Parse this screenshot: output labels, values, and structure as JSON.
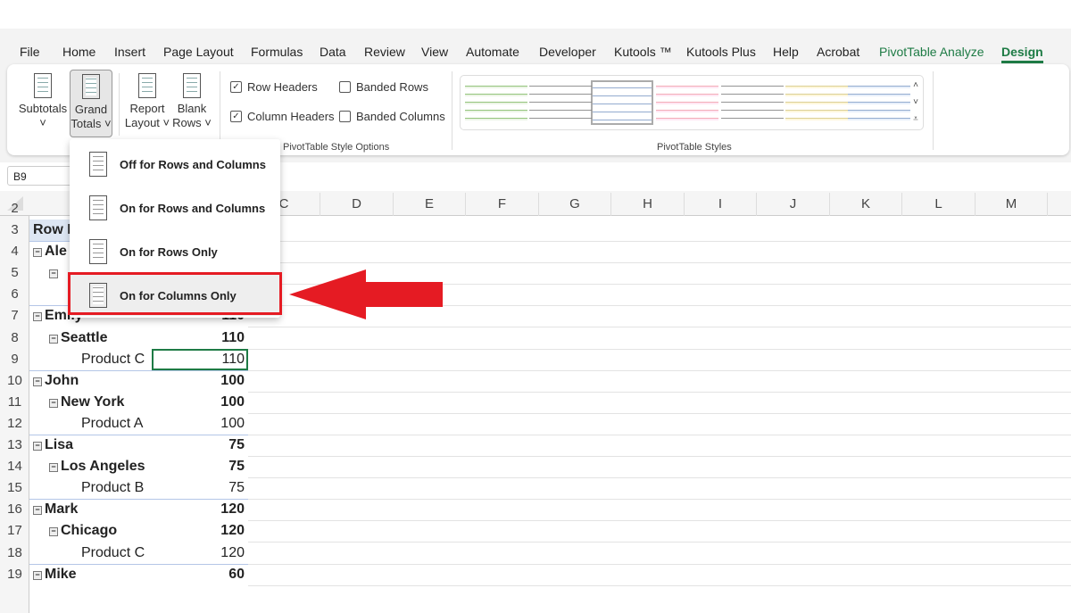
{
  "menu_tabs": [
    "File",
    "Home",
    "Insert",
    "Page Layout",
    "Formulas",
    "Data",
    "Review",
    "View",
    "Automate",
    "Developer",
    "Kutools ™",
    "Kutools Plus",
    "Help",
    "Acrobat",
    "PivotTable Analyze",
    "Design"
  ],
  "active_tab": "Design",
  "ribbon": {
    "buttons": [
      {
        "label1": "Subtotals",
        "label2": "˅"
      },
      {
        "label1": "Grand",
        "label2": "Totals ˅"
      },
      {
        "label1": "Report",
        "label2": "Layout ˅"
      },
      {
        "label1": "Blank",
        "label2": "Rows ˅"
      }
    ],
    "options": [
      {
        "label": "Row Headers",
        "checked": true
      },
      {
        "label": "Banded Rows",
        "checked": false
      },
      {
        "label": "Column Headers",
        "checked": true
      },
      {
        "label": "Banded Columns",
        "checked": false
      }
    ],
    "options_group": "PivotTable Style Options",
    "styles_group": "PivotTable Styles"
  },
  "name_box": "B9",
  "columns": [
    "C",
    "D",
    "E",
    "F",
    "G",
    "H",
    "I",
    "J",
    "K",
    "L",
    "M"
  ],
  "rows": [
    {
      "n": "3",
      "a": "Row L",
      "b": "",
      "lvl": 0,
      "bold": true
    },
    {
      "n": "4",
      "a": "Ale",
      "b": "",
      "lvl": 0,
      "bold": true,
      "tog": true
    },
    {
      "n": "5",
      "a": "",
      "b": "",
      "lvl": 1,
      "bold": true,
      "tog": true
    },
    {
      "n": "6",
      "a": "",
      "b": "",
      "lvl": 2
    },
    {
      "n": "7",
      "a": "Emily",
      "b": "110",
      "lvl": 0,
      "bold": true,
      "tog": true
    },
    {
      "n": "8",
      "a": "Seattle",
      "b": "110",
      "lvl": 1,
      "bold": true,
      "tog": true
    },
    {
      "n": "9",
      "a": "Product C",
      "b": "110",
      "lvl": 2
    },
    {
      "n": "10",
      "a": "John",
      "b": "100",
      "lvl": 0,
      "bold": true,
      "tog": true
    },
    {
      "n": "11",
      "a": "New York",
      "b": "100",
      "lvl": 1,
      "bold": true,
      "tog": true
    },
    {
      "n": "12",
      "a": "Product A",
      "b": "100",
      "lvl": 2
    },
    {
      "n": "13",
      "a": "Lisa",
      "b": "75",
      "lvl": 0,
      "bold": true,
      "tog": true
    },
    {
      "n": "14",
      "a": "Los Angeles",
      "b": "75",
      "lvl": 1,
      "bold": true,
      "tog": true
    },
    {
      "n": "15",
      "a": "Product B",
      "b": "75",
      "lvl": 2
    },
    {
      "n": "16",
      "a": "Mark",
      "b": "120",
      "lvl": 0,
      "bold": true,
      "tog": true
    },
    {
      "n": "17",
      "a": "Chicago",
      "b": "120",
      "lvl": 1,
      "bold": true,
      "tog": true
    },
    {
      "n": "18",
      "a": "Product C",
      "b": "120",
      "lvl": 2
    },
    {
      "n": "19",
      "a": "Mike",
      "b": "60",
      "lvl": 0,
      "bold": true,
      "tog": true
    }
  ],
  "dropdown": [
    "Off for Rows and Columns",
    "On for Rows and Columns",
    "On for Rows Only",
    "On for Columns Only"
  ],
  "highlighted_option": "On for Columns Only",
  "colors": {
    "accent": "#1e7b45",
    "annotation": "#e51b23"
  }
}
